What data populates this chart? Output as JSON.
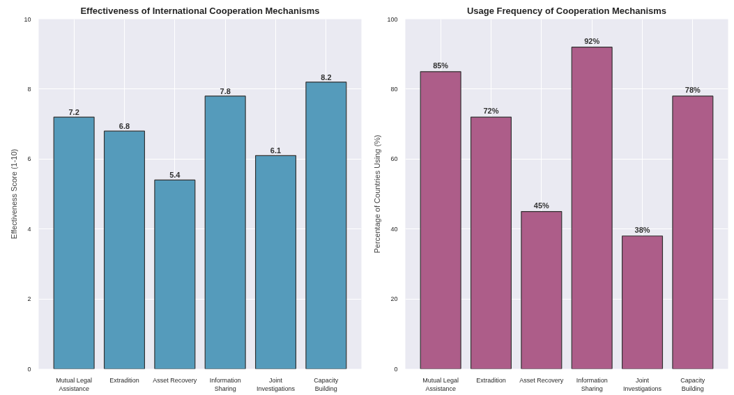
{
  "chart_data": [
    {
      "type": "bar",
      "title": "Effectiveness of International Cooperation Mechanisms",
      "ylabel": "Effectiveness Score (1-10)",
      "categories": [
        "Mutual Legal\nAssistance",
        "Extradition",
        "Asset Recovery",
        "Information\nSharing",
        "Joint\nInvestigations",
        "Capacity\nBuilding"
      ],
      "values": [
        7.2,
        6.8,
        5.4,
        7.8,
        6.1,
        8.2
      ],
      "color": "#559bbb",
      "ylim": [
        0,
        10
      ],
      "yticks": [
        0,
        2,
        4,
        6,
        8,
        10
      ],
      "grid": true,
      "data_labels": true
    },
    {
      "type": "bar",
      "title": "Usage Frequency of Cooperation Mechanisms",
      "ylabel": "Percentage of Countries Using (%)",
      "categories": [
        "Mutual Legal\nAssistance",
        "Extradition",
        "Asset Recovery",
        "Information\nSharing",
        "Joint\nInvestigations",
        "Capacity\nBuilding"
      ],
      "values": [
        85,
        72,
        45,
        92,
        38,
        78
      ],
      "color": "#ad5d89",
      "value_labels": [
        "85%",
        "72%",
        "45%",
        "92%",
        "38%",
        "78%"
      ],
      "ylim": [
        0,
        100
      ],
      "yticks": [
        0,
        20,
        40,
        60,
        80,
        100
      ],
      "grid": true
    }
  ]
}
